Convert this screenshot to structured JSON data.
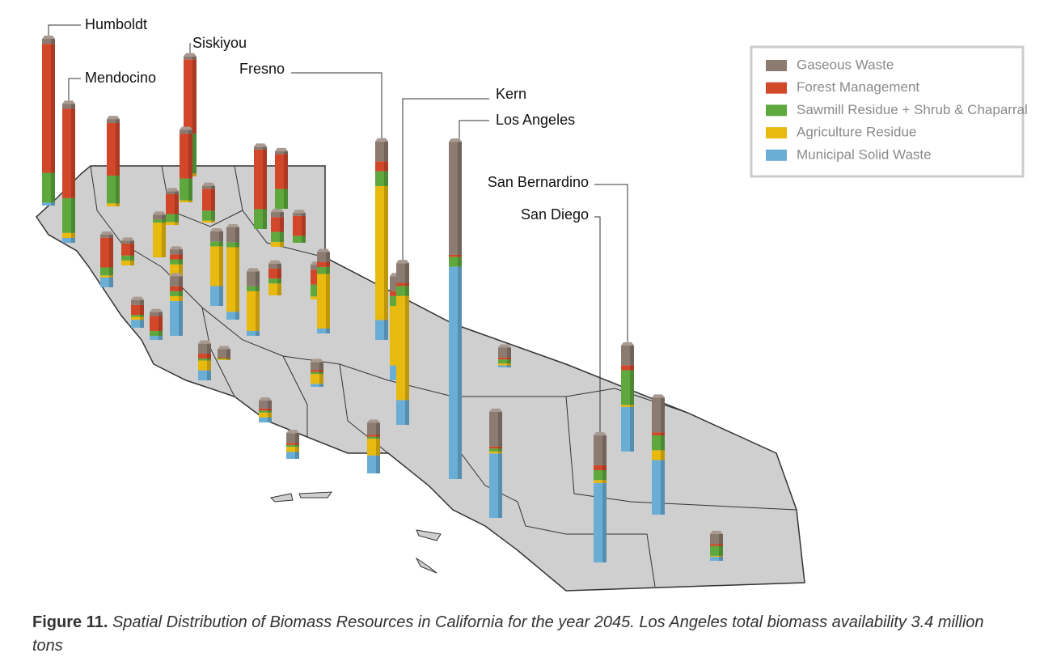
{
  "chart_data": {
    "type": "map-bar",
    "categories": [
      "Humboldt",
      "Mendocino",
      "Siskiyou",
      "Fresno",
      "Kern",
      "Los Angeles",
      "San Bernardino",
      "San Diego",
      null,
      null,
      null,
      null,
      null,
      null,
      null,
      null,
      null,
      null,
      null,
      null,
      null,
      null,
      null,
      null,
      null,
      null,
      null,
      null,
      null,
      null,
      null,
      null,
      null,
      null,
      null,
      null,
      null,
      null,
      null,
      null
    ],
    "series": [
      {
        "name": "Gaseous Waste",
        "color": "#8c7b70",
        "values": [
          0.05,
          0.05,
          0.03,
          0.2,
          0.2,
          1.14,
          0.2,
          0.3,
          0.04,
          0.04,
          0.03,
          0.03,
          0.03,
          0.03,
          0.05,
          0.03,
          0.03,
          0.05,
          0.1,
          0.15,
          0.15,
          0.05,
          0.05,
          0.03,
          0.1,
          0.05,
          0.1,
          0.05,
          0.04,
          0.1,
          0.08,
          0.08,
          0.08,
          0.1,
          0.12,
          0.35,
          0.35,
          0.1,
          0.1,
          0.15
        ]
      },
      {
        "name": "Forest Management",
        "color": "#d2472a",
        "values": [
          1.3,
          0.9,
          0.75,
          0.1,
          0.03,
          0.02,
          0.05,
          0.05,
          0.53,
          0.45,
          0.6,
          0.35,
          0.2,
          0.22,
          0,
          0.3,
          0.12,
          0.05,
          0,
          0,
          0,
          0.1,
          0.15,
          0.2,
          0.05,
          0.15,
          0.05,
          0.1,
          0.15,
          0.05,
          0.01,
          0.02,
          0.02,
          0.02,
          0.02,
          0.02,
          0.03,
          0.02,
          0.02,
          0.05
        ]
      },
      {
        "name": "Sawmill Residue + Shrub & Chaparral",
        "color": "#5ea83e",
        "values": [
          0.3,
          0.35,
          0.4,
          0.15,
          0.1,
          0.1,
          0.35,
          0.1,
          0.28,
          0.22,
          0.2,
          0.2,
          0.08,
          0.1,
          0.03,
          0.08,
          0.05,
          0.05,
          0.05,
          0.05,
          0.05,
          0.05,
          0.1,
          0.07,
          0.07,
          0.12,
          0.05,
          0.02,
          0.05,
          0.02,
          0.01,
          0.02,
          0.02,
          0.02,
          0.02,
          0.03,
          0.15,
          0.04,
          0.1,
          0.1
        ]
      },
      {
        "name": "Agriculture Residue",
        "color": "#e8b90f",
        "values": [
          0,
          0.05,
          0.03,
          1.35,
          1.05,
          0,
          0.02,
          0.03,
          0.03,
          0.02,
          0,
          0,
          0.03,
          0.02,
          0.35,
          0.02,
          0.05,
          0.15,
          0.4,
          0.65,
          0.4,
          0.12,
          0.05,
          0,
          0.55,
          0.03,
          0.05,
          0.03,
          0,
          0.1,
          0.01,
          0.1,
          0.05,
          0.05,
          0.17,
          0.02,
          0.1,
          0.02,
          0.01,
          0.6
        ]
      },
      {
        "name": "Municipal Solid Waste",
        "color": "#6aaed6",
        "values": [
          0.03,
          0.05,
          0,
          0.2,
          0.25,
          2.14,
          0.45,
          0.8,
          0,
          0,
          0,
          0,
          0,
          0,
          0,
          0.1,
          0,
          0,
          0.2,
          0.08,
          0.05,
          0,
          0,
          0,
          0.05,
          0,
          0.35,
          0.08,
          0.04,
          0.1,
          0,
          0.03,
          0.05,
          0.07,
          0.18,
          0.65,
          0.55,
          0.02,
          0.04,
          0.15
        ]
      }
    ],
    "caption_label": "Figure 11.",
    "caption_text": "Spatial Distribution of Biomass Resources in California for the year 2045. Los Angeles total biomass availability 3.4 million tons"
  }
}
